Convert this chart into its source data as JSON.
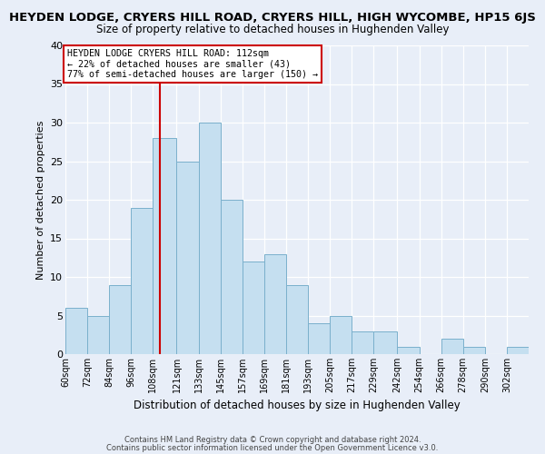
{
  "title": "HEYDEN LODGE, CRYERS HILL ROAD, CRYERS HILL, HIGH WYCOMBE, HP15 6JS",
  "subtitle": "Size of property relative to detached houses in Hughenden Valley",
  "xlabel": "Distribution of detached houses by size in Hughenden Valley",
  "ylabel": "Number of detached properties",
  "footnote1": "Contains HM Land Registry data © Crown copyright and database right 2024.",
  "footnote2": "Contains public sector information licensed under the Open Government Licence v3.0.",
  "bin_edges": [
    60,
    72,
    84,
    96,
    108,
    121,
    133,
    145,
    157,
    169,
    181,
    193,
    205,
    217,
    229,
    242,
    254,
    266,
    278,
    290,
    302
  ],
  "bin_labels": [
    "60sqm",
    "72sqm",
    "84sqm",
    "96sqm",
    "108sqm",
    "121sqm",
    "133sqm",
    "145sqm",
    "157sqm",
    "169sqm",
    "181sqm",
    "193sqm",
    "205sqm",
    "217sqm",
    "229sqm",
    "242sqm",
    "254sqm",
    "266sqm",
    "278sqm",
    "290sqm",
    "302sqm"
  ],
  "counts": [
    6,
    5,
    9,
    19,
    28,
    25,
    30,
    20,
    12,
    13,
    9,
    4,
    5,
    3,
    3,
    1,
    0,
    2,
    1,
    0,
    1
  ],
  "bar_color": "#c5dff0",
  "bar_edge_color": "#7ab0cc",
  "vline_x": 112,
  "vline_color": "#cc0000",
  "annotation_text": "HEYDEN LODGE CRYERS HILL ROAD: 112sqm\n← 22% of detached houses are smaller (43)\n77% of semi-detached houses are larger (150) →",
  "annotation_box_color": "#ffffff",
  "annotation_box_edge_color": "#cc0000",
  "ylim": [
    0,
    40
  ],
  "yticks": [
    0,
    5,
    10,
    15,
    20,
    25,
    30,
    35,
    40
  ],
  "background_color": "#e8eef8",
  "plot_background_color": "#e8eef8",
  "grid_color": "#ffffff",
  "title_fontsize": 9.5,
  "subtitle_fontsize": 8.5
}
